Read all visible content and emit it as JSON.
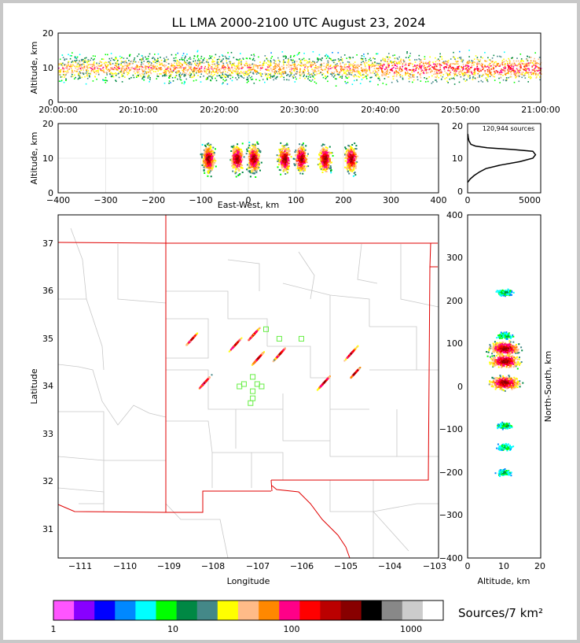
{
  "title": "LL LMA 2000-2100 UTC August 23, 2024",
  "time_height": {
    "ylabel": "Altitude, km",
    "ylim": [
      0,
      20
    ],
    "y_ticks": [
      "0",
      "10",
      "20"
    ],
    "x_ticks": [
      "20:00:00",
      "20:10:00",
      "20:20:00",
      "20:30:00",
      "20:40:00",
      "20:50:00",
      "21:00:00"
    ]
  },
  "ew_panel": {
    "ylabel": "Altitude, km",
    "xlabel": "East-West, km",
    "xlim": [
      -400,
      400
    ],
    "x_ticks": [
      "−400",
      "−300",
      "−200",
      "−100",
      "0",
      "100",
      "200",
      "300",
      "400"
    ],
    "y_ticks": [
      "0",
      "10",
      "20"
    ]
  },
  "histogram": {
    "annotation": "120,944 sources",
    "x_ticks": [
      "0",
      "5000"
    ],
    "y_ticks": [
      "0",
      "10",
      "20"
    ]
  },
  "plan_view": {
    "xlabel": "Longitude",
    "ylabel": "Latitude",
    "x_ticks": [
      "−111",
      "−110",
      "−109",
      "−108",
      "−107",
      "−106",
      "−105",
      "−104",
      "−103"
    ],
    "y_ticks": [
      "31",
      "32",
      "33",
      "34",
      "35",
      "36",
      "37"
    ],
    "xlim": [
      -111.5,
      -102.9
    ],
    "ylim": [
      30.4,
      37.6
    ]
  },
  "ns_panel": {
    "ylabel": "North-South, km",
    "xlabel": "Altitude, km",
    "y_ticks": [
      "−400",
      "−300",
      "−200",
      "−100",
      "0",
      "100",
      "200",
      "300",
      "400"
    ],
    "x_ticks": [
      "0",
      "10",
      "20"
    ]
  },
  "colorbar": {
    "label": "Sources/7 km²",
    "tick_labels": [
      "1",
      "10",
      "100",
      "1000"
    ],
    "colors": [
      "#ff55ff",
      "#8800ff",
      "#0000ff",
      "#0088ff",
      "#00ffff",
      "#00ff00",
      "#008844",
      "#448888",
      "#ffff00",
      "#ffbb88",
      "#ff8800",
      "#ff0088",
      "#ff0000",
      "#bb0000",
      "#880000",
      "#000000",
      "#888888",
      "#cccccc",
      "#ffffff"
    ]
  },
  "chart_data": [
    {
      "type": "scatter",
      "title": "LL LMA 2000-2100 UTC August 23, 2024",
      "xlabel": "",
      "ylabel": "Altitude, km",
      "xlim": [
        "20:00:00",
        "21:00:00"
      ],
      "ylim": [
        0,
        20
      ],
      "description_values": {
        "typical_altitude_km": [
          5,
          15
        ],
        "peak_density_altitude_km": 10
      }
    },
    {
      "type": "heatmap",
      "xlabel": "East-West, km",
      "ylabel": "Altitude, km",
      "xlim": [
        -400,
        400
      ],
      "ylim": [
        0,
        20
      ],
      "clusters_x_km": [
        -85,
        -25,
        10,
        75,
        110,
        160,
        215
      ]
    },
    {
      "type": "line",
      "xlabel": "",
      "ylabel": "",
      "xlim": [
        0,
        5600
      ],
      "ylim": [
        0,
        20
      ],
      "x": [
        0,
        200,
        500,
        900,
        1400,
        2500,
        4000,
        5000,
        5200,
        5000,
        3500,
        1500,
        600,
        250,
        100,
        50,
        20
      ],
      "y": [
        3,
        4,
        5,
        6,
        7,
        8,
        9,
        10,
        11,
        12,
        12.5,
        13,
        13.5,
        14,
        15,
        16,
        17
      ]
    },
    {
      "type": "heatmap",
      "xlabel": "Longitude",
      "ylabel": "Latitude",
      "xlim": [
        -111.5,
        -102.9
      ],
      "ylim": [
        30.4,
        37.6
      ],
      "storm_centers": [
        [
          -107.1,
          35.1
        ],
        [
          -107.0,
          34.6
        ],
        [
          -106.5,
          34.7
        ],
        [
          -108.2,
          34.1
        ],
        [
          -105.5,
          34.1
        ],
        [
          -104.9,
          34.7
        ],
        [
          -104.8,
          34.3
        ],
        [
          -107.5,
          34.9
        ],
        [
          -108.5,
          35.0
        ]
      ],
      "stations": [
        [
          -107.3,
          34.05
        ],
        [
          -107.1,
          34.2
        ],
        [
          -107.0,
          34.05
        ],
        [
          -107.1,
          33.9
        ],
        [
          -107.1,
          33.75
        ],
        [
          -107.15,
          33.65
        ],
        [
          -106.9,
          34.0
        ],
        [
          -106.5,
          35.0
        ],
        [
          -106.0,
          35.0
        ],
        [
          -106.8,
          35.2
        ],
        [
          -107.4,
          34.0
        ]
      ]
    },
    {
      "type": "heatmap",
      "xlabel": "Altitude, km",
      "ylabel": "North-South, km",
      "xlim": [
        0,
        20
      ],
      "ylim": [
        -400,
        400
      ],
      "clusters_y_km": [
        10,
        60,
        90,
        120,
        220,
        -90,
        -140,
        -200
      ]
    }
  ]
}
